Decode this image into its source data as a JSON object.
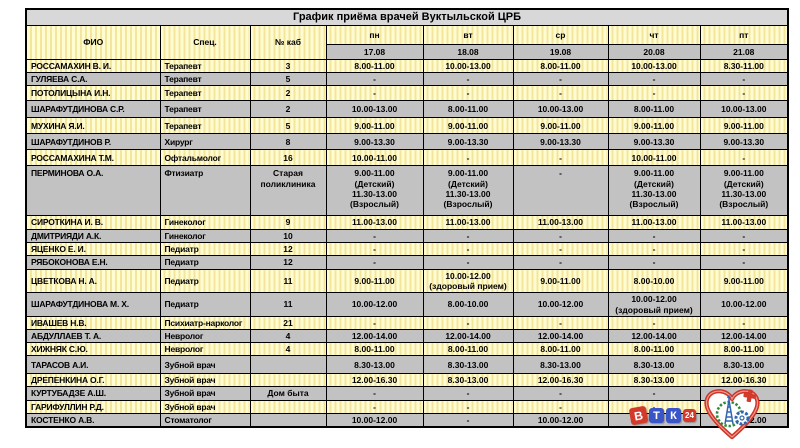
{
  "title": "График приёма врачей Вуктыльской ЦРБ",
  "table": {
    "columns": [
      "ФИО",
      "Спец.",
      "№ каб"
    ],
    "days": [
      "пн",
      "вт",
      "ср",
      "чт",
      "пт"
    ],
    "dates": [
      "17.08",
      "18.08",
      "19.08",
      "20.08",
      "21.08"
    ],
    "rows": [
      {
        "name": "РОССАМАХИН В. И.",
        "spec": "Терапевт",
        "cab": "3",
        "times": [
          "8.00-11.00",
          "10.00-13.00",
          "8.00-11.00",
          "10.00-13.00",
          "8.30-11.00"
        ]
      },
      {
        "name": "ГУЛЯЕВА С.А.",
        "spec": "Терапевт",
        "cab": "5",
        "times": [
          "-",
          "-",
          "-",
          "-",
          "-"
        ]
      },
      {
        "name": "ПОТОЛИЦЫНА И.Н.",
        "spec": "Терапевт",
        "cab": "2",
        "times": [
          "-",
          "-",
          "-",
          "-",
          "-"
        ]
      },
      {
        "name": "ШАРАФУТДИНОВА С.Р.",
        "spec": "Терапевт",
        "cab": "2",
        "times": [
          "10.00-13.00",
          "8.00-11.00",
          "10.00-13.00",
          "8.00-11.00",
          "10.00-13.00"
        ]
      },
      {
        "name": "МУХИНА Я.И.",
        "spec": "Терапевт",
        "cab": "5",
        "times": [
          "9.00-11.00",
          "9.00-11.00",
          "9.00-11.00",
          "9.00-11.00",
          "9.00-11.00"
        ]
      },
      {
        "name": "ШАРАФУТДИНОВ Р.",
        "spec": "Хирург",
        "cab": "8",
        "times": [
          "9.00-13.30",
          "9.00-13.30",
          "9.00-13.30",
          "9.00-13.30",
          "9.00-13.30"
        ]
      },
      {
        "name": "РОССАМАХИНА Т.М.",
        "spec": "Офтальмолог",
        "cab": "16",
        "times": [
          "10.00-11.00",
          "-",
          "-",
          "10.00-11.00",
          "-"
        ]
      },
      {
        "name": "ПЕРМИНОВА О.А.",
        "spec": "Фтизиатр",
        "cab": "Старая\nполиклиника",
        "times": [
          "9.00-11.00\n(Детский)\n11.30-13.00\n(Взрослый)",
          "9.00-11.00\n(Детский)\n11.30-13.00\n(Взрослый)",
          "-",
          "9.00-11.00\n(Детский)\n11.30-13.00\n(Взрослый)",
          "9.00-11.00\n(Детский)\n11.30-13.00\n(Взрослый)"
        ]
      },
      {
        "name": "СИРОТКИНА И. В.",
        "spec": "Гинеколог",
        "cab": "9",
        "times": [
          "11.00-13.00",
          "11.00-13.00",
          "11.00-13.00",
          "11.00-13.00",
          "11.00-13.00"
        ]
      },
      {
        "name": "ДМИТРИЯДИ А.К.",
        "spec": "Гинеколог",
        "cab": "10",
        "times": [
          "-",
          "-",
          "-",
          "-",
          "-"
        ]
      },
      {
        "name": "ЯЦЕНКО Е. И.",
        "spec": "Педиатр",
        "cab": "12",
        "times": [
          "-",
          "-",
          "-",
          "-",
          "-"
        ]
      },
      {
        "name": "РЯБОКОНОВА Е.Н.",
        "spec": "Педиатр",
        "cab": "12",
        "times": [
          "-",
          "-",
          "-",
          "-",
          "-"
        ]
      },
      {
        "name": "ЦВЕТКОВА Н. А.",
        "spec": "Педиатр",
        "cab": "11",
        "times": [
          "9.00-11.00",
          "10.00-12.00\n(здоровый прием)",
          "9.00-11.00",
          "8.00-10.00",
          "9.00-11.00"
        ]
      },
      {
        "name": "ШАРАФУТДИНОВА М. Х.",
        "spec": "Педиатр",
        "cab": "11",
        "times": [
          "10.00-12.00",
          "8.00-10.00",
          "10.00-12.00",
          "10.00-12.00\n(здоровый прием)",
          "10.00-12.00"
        ]
      },
      {
        "name": "ИВАШЕВ Н.В.",
        "spec": "Психиатр-нарколог",
        "cab": "21",
        "times": [
          "-",
          "-",
          "-",
          "-",
          "-"
        ]
      },
      {
        "name": "АБДУЛЛАЕВ Т. А.",
        "spec": "Невролог",
        "cab": "4",
        "times": [
          "12.00-14.00",
          "12.00-14.00",
          "12.00-14.00",
          "12.00-14.00",
          "12.00-14.00"
        ]
      },
      {
        "name": "ХИЖНЯК С.Ю.",
        "spec": "Невролог",
        "cab": "4",
        "times": [
          "8.00-11.00",
          "8.00-11.00",
          "8.00-11.00",
          "8.00-11.00",
          "8.00-11.00"
        ]
      },
      {
        "name": "ТАРАСОВ А.И.",
        "spec": "Зубной врач",
        "cab": "",
        "times": [
          "8.30-13.00",
          "8.30-13.00",
          "8.30-13.00",
          "8.30-13.00",
          "8.30-13.00"
        ]
      },
      {
        "name": "ДРЕПЕНКИНА О.Г.",
        "spec": "Зубной врач",
        "cab": "",
        "times": [
          "12.00-16.30",
          "8.30-13.00",
          "12.00-16.30",
          "8.30-13.00",
          "12.00-16.30"
        ]
      },
      {
        "name": "КУРТУБАДЗЕ А.Ш.",
        "spec": "Зубной врач",
        "cab": "Дом быта",
        "times": [
          "-",
          "-",
          "-",
          "-",
          "-"
        ]
      },
      {
        "name": "ГАРИФУЛЛИН Р.Д.",
        "spec": "Зубной врач",
        "cab": "",
        "times": [
          "-",
          "-",
          "-",
          "-",
          "-"
        ]
      },
      {
        "name": "КОСТЕНКО А.В.",
        "spec": "Стоматолог",
        "cab": "",
        "times": [
          "10.00-12.00",
          "-",
          "10.00-12.00",
          "-",
          "10.00-12.00"
        ]
      }
    ]
  },
  "logos": {
    "vtk": {
      "l1": "В",
      "l2": "Т",
      "l3": "К",
      "badge": "24"
    }
  },
  "colors": {
    "row_yellow": "#fffcd2",
    "row_yellow_stripe": "#f3e69c",
    "row_gray": "#c2c2c2",
    "title_bg": "#d8d8d8",
    "border": "#000000",
    "logo_red": "#d43a2b",
    "logo_blue": "#3a55c5",
    "heart_red": "#cf3528",
    "wreath_green": "#2e8b3a",
    "derrick_blue": "#2f66b0"
  }
}
